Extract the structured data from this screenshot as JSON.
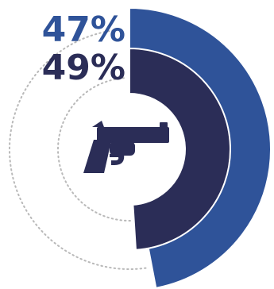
{
  "chart_data": {
    "type": "radial-bar",
    "series": [
      {
        "value": 47,
        "label": "47%",
        "color": "#2f5399"
      },
      {
        "value": 49,
        "label": "49%",
        "color": "#2b2d57"
      }
    ],
    "max": 100,
    "track_style": "dotted",
    "track_color": "#b9b9b9"
  },
  "icon": {
    "name": "revolver-icon",
    "color": "#2b2d57"
  }
}
